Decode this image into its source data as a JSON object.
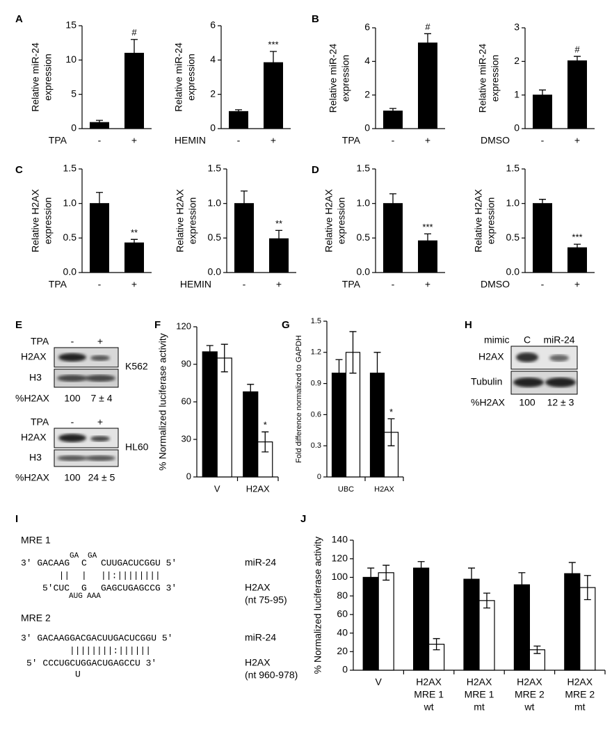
{
  "panel_letters": [
    "A",
    "B",
    "C",
    "D",
    "E",
    "F",
    "G",
    "H",
    "I",
    "J"
  ],
  "chart_data": [
    {
      "type": "bar",
      "y_label": [
        "Relative miR-24",
        "expression"
      ],
      "x_label": "TPA",
      "categories": [
        "-",
        "+"
      ],
      "values": [
        0.9,
        11
      ],
      "errors": [
        0.3,
        2
      ],
      "annotations": [
        null,
        "#"
      ],
      "color": "#000000",
      "ylim": [
        0,
        15
      ],
      "yticks": [
        0,
        5,
        10,
        15
      ]
    },
    {
      "type": "bar",
      "y_label": [
        "Relative miR-24",
        "expression"
      ],
      "x_label": "HEMIN",
      "categories": [
        "-",
        "+"
      ],
      "values": [
        1,
        3.85
      ],
      "errors": [
        0.1,
        0.65
      ],
      "annotations": [
        null,
        "***"
      ],
      "color": "#000000",
      "ylim": [
        0,
        6
      ],
      "yticks": [
        0,
        2,
        4,
        6
      ]
    },
    {
      "type": "bar",
      "y_label": [
        "Relative miR-24",
        "expression"
      ],
      "x_label": "TPA",
      "categories": [
        "-",
        "+"
      ],
      "values": [
        1.05,
        5.1
      ],
      "errors": [
        0.15,
        0.55
      ],
      "annotations": [
        null,
        "#"
      ],
      "color": "#000000",
      "ylim": [
        0,
        6
      ],
      "yticks": [
        0,
        2,
        4,
        6
      ]
    },
    {
      "type": "bar",
      "y_label": [
        "Relative miR-24",
        "expression"
      ],
      "x_label": "DMSO",
      "categories": [
        "-",
        "+"
      ],
      "values": [
        1,
        2.02
      ],
      "errors": [
        0.15,
        0.13
      ],
      "annotations": [
        null,
        "#"
      ],
      "color": "#000000",
      "ylim": [
        0,
        3
      ],
      "yticks": [
        0,
        1,
        2,
        3
      ]
    },
    {
      "type": "bar",
      "y_label": [
        "Relative H2AX",
        "expression"
      ],
      "x_label": "TPA",
      "categories": [
        "-",
        "+"
      ],
      "values": [
        1,
        0.43
      ],
      "errors": [
        0.16,
        0.05
      ],
      "annotations": [
        null,
        "**"
      ],
      "color": "#000000",
      "ylim": [
        0,
        1.5
      ],
      "yticks": [
        {
          "value": 0,
          "label": "0.0"
        },
        {
          "value": 0.5,
          "label": "0.5"
        },
        {
          "value": 1,
          "label": "1.0"
        },
        {
          "value": 1.5,
          "label": "1.5"
        }
      ]
    },
    {
      "type": "bar",
      "y_label": [
        "Relative H2AX",
        "expression"
      ],
      "x_label": "HEMIN",
      "categories": [
        "-",
        "+"
      ],
      "values": [
        1,
        0.49
      ],
      "errors": [
        0.18,
        0.12
      ],
      "annotations": [
        null,
        "**"
      ],
      "color": "#000000",
      "ylim": [
        0,
        1.5
      ],
      "yticks": [
        {
          "value": 0,
          "label": "0.0"
        },
        {
          "value": 0.5,
          "label": "0.5"
        },
        {
          "value": 1,
          "label": "1.0"
        },
        {
          "value": 1.5,
          "label": "1.5"
        }
      ]
    },
    {
      "type": "bar",
      "y_label": [
        "Relative H2AX",
        "expression"
      ],
      "x_label": "TPA",
      "categories": [
        "-",
        "+"
      ],
      "values": [
        1,
        0.46
      ],
      "errors": [
        0.14,
        0.1
      ],
      "annotations": [
        null,
        "***"
      ],
      "color": "#000000",
      "ylim": [
        0,
        1.5
      ],
      "yticks": [
        {
          "value": 0,
          "label": "0.0"
        },
        {
          "value": 0.5,
          "label": "0.5"
        },
        {
          "value": 1,
          "label": "1.0"
        },
        {
          "value": 1.5,
          "label": "1.5"
        }
      ]
    },
    {
      "type": "bar",
      "y_label": [
        "Relative H2AX",
        "expression"
      ],
      "x_label": "DMSO",
      "categories": [
        "-",
        "+"
      ],
      "values": [
        1,
        0.36
      ],
      "errors": [
        0.06,
        0.05
      ],
      "annotations": [
        null,
        "***"
      ],
      "color": "#000000",
      "ylim": [
        0,
        1.5
      ],
      "yticks": [
        {
          "value": 0,
          "label": "0.0"
        },
        {
          "value": 0.5,
          "label": "0.5"
        },
        {
          "value": 1,
          "label": "1.0"
        },
        {
          "value": 1.5,
          "label": "1.5"
        }
      ]
    },
    {
      "type": "bar",
      "y_label": [
        "% Normalized luciferase activity"
      ],
      "categories": [
        [
          "V"
        ],
        [
          "H2AX"
        ]
      ],
      "series": [
        {
          "color": "#000000",
          "values": [
            100,
            68
          ],
          "errors": [
            5,
            6
          ],
          "annotations": [
            null,
            null
          ]
        },
        {
          "color": "#ffffff",
          "values": [
            95,
            28
          ],
          "errors": [
            11,
            8
          ],
          "annotations": [
            null,
            "*"
          ]
        }
      ],
      "ylim": [
        0,
        120
      ],
      "yticks": [
        0,
        30,
        60,
        90,
        120
      ]
    },
    {
      "type": "bar",
      "y_label": [
        "Fold difference normalized to GAPDH"
      ],
      "categories": [
        [
          "UBC"
        ],
        [
          "H2AX"
        ]
      ],
      "series": [
        {
          "color": "#000000",
          "values": [
            1,
            1
          ],
          "errors": [
            0.13,
            0.2
          ],
          "annotations": [
            null,
            null
          ]
        },
        {
          "color": "#ffffff",
          "values": [
            1.2,
            0.43
          ],
          "errors": [
            0.2,
            0.13
          ],
          "annotations": [
            null,
            "*"
          ]
        }
      ],
      "ylim": [
        0,
        1.5
      ],
      "yticks": [
        0,
        0.3,
        0.6,
        0.9,
        1.2,
        1.5
      ]
    },
    {
      "type": "bar",
      "y_label": [
        "% Normalized luciferase activity"
      ],
      "categories": [
        [
          "V"
        ],
        [
          "H2AX",
          "MRE 1",
          "wt"
        ],
        [
          "H2AX",
          "MRE 1",
          "mt"
        ],
        [
          "H2AX",
          "MRE 2",
          "wt"
        ],
        [
          "H2AX",
          "MRE 2",
          "mt"
        ]
      ],
      "series": [
        {
          "color": "#000000",
          "values": [
            100,
            110,
            98,
            92,
            104
          ],
          "errors": [
            10,
            7,
            12,
            13,
            12
          ]
        },
        {
          "color": "#ffffff",
          "values": [
            105,
            28,
            75,
            22,
            89
          ],
          "errors": [
            8,
            6,
            8,
            4,
            13
          ]
        }
      ],
      "ylim": [
        0,
        140
      ],
      "yticks": [
        0,
        20,
        40,
        60,
        80,
        100,
        120,
        140
      ]
    }
  ],
  "blots_e": [
    {
      "treatment": "TPA",
      "lanes": [
        "-",
        "+"
      ],
      "rows": [
        "H2AX",
        "H3"
      ],
      "cell_line": "K562",
      "quant_label": "%H2AX",
      "quant": [
        "100",
        "7 ± 4"
      ]
    },
    {
      "treatment": "TPA",
      "lanes": [
        "-",
        "+"
      ],
      "rows": [
        "H2AX",
        "H3"
      ],
      "cell_line": "HL60",
      "quant_label": "%H2AX",
      "quant": [
        "100",
        "24 ± 5"
      ]
    }
  ],
  "blot_h": {
    "header": "mimic",
    "lanes": [
      "C",
      "miR-24"
    ],
    "rows": [
      "H2AX",
      "Tubulin"
    ],
    "quant_label": "%H2AX",
    "quant": [
      "100",
      "12 ± 3"
    ]
  },
  "sequences": {
    "mre1": {
      "title": "MRE 1",
      "top": [
        "3' GACAAG",
        "GA",
        "C",
        "GA",
        "CUUGACUCGGU 5'"
      ],
      "pairs": [
        "||",
        "|",
        "||:||||||||"
      ],
      "bottom": [
        "5'CUC",
        "AUG",
        "G",
        "AAA",
        "GAGCUGAGCCG 3'"
      ],
      "mirna": "miR-24",
      "target": "H2AX",
      "range": "(nt 75-95)"
    },
    "mre2": {
      "title": "MRE 2",
      "top": "3' GACAAGGACGACUUGACUCGGU 5'",
      "pairs": "||||||||:||||||",
      "bottom": "5' CCCUGCUGGACUGAGCCU 3'",
      "bulge": "U",
      "mirna": "miR-24",
      "target": "H2AX",
      "range": "(nt 960-978)"
    }
  }
}
